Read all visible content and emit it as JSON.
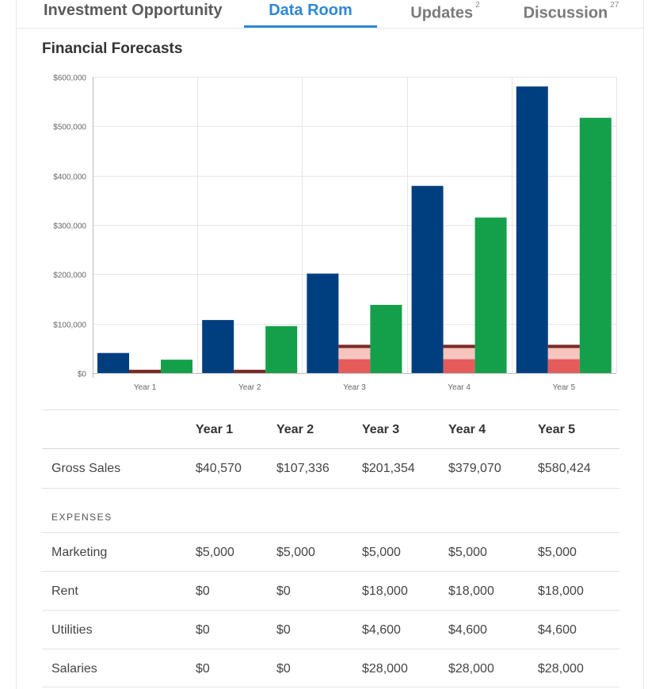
{
  "tabs": [
    {
      "label": "Investment Opportunity",
      "badge": "",
      "active": false
    },
    {
      "label": "Data Room",
      "badge": "",
      "active": true
    },
    {
      "label": "Updates",
      "badge": "2",
      "active": false
    },
    {
      "label": "Discussion",
      "badge": "27",
      "active": false
    }
  ],
  "section_title": "Financial Forecasts",
  "colors": {
    "accent": "#2f87d9",
    "series_blue": "#003f7f",
    "series_green": "#14a04a",
    "series_red": "#e45b5b",
    "series_red_light": "#f6c4bd",
    "series_red_line": "#7a2a25"
  },
  "chart_data": {
    "type": "bar",
    "categories": [
      "Year 1",
      "Year 2",
      "Year 3",
      "Year 4",
      "Year 5"
    ],
    "ylim": [
      0,
      600000
    ],
    "yticks": [
      0,
      100000,
      200000,
      300000,
      400000,
      500000,
      600000
    ],
    "ytick_labels": [
      "$0",
      "$100,000",
      "$200,000",
      "$300,000",
      "$400,000",
      "$500,000",
      "$600,000"
    ],
    "grid": true,
    "series": [
      {
        "values": [
          40570,
          107336,
          201354,
          379070,
          580424
        ]
      },
      {
        "stacked": true,
        "values": [
          5000,
          5000,
          55600,
          55600,
          55600
        ],
        "segments": [
          {
            "values": [
              0,
              0,
              28000,
              28000,
              28000
            ]
          },
          {
            "values": [
              0,
              0,
              4600,
              4600,
              4600
            ]
          },
          {
            "values": [
              0,
              0,
              18000,
              18000,
              18000
            ]
          },
          {
            "values": [
              5000,
              5000,
              5000,
              5000,
              5000
            ]
          }
        ]
      },
      {
        "values": [
          27000,
          95000,
          138000,
          315000,
          517000
        ]
      }
    ]
  },
  "table": {
    "columns": [
      "",
      "Year 1",
      "Year 2",
      "Year 3",
      "Year 4",
      "Year 5"
    ],
    "gross_sales": {
      "label": "Gross Sales",
      "values": [
        "$40,570",
        "$107,336",
        "$201,354",
        "$379,070",
        "$580,424"
      ]
    },
    "expenses_heading": "EXPENSES",
    "rows": [
      {
        "label": "Marketing",
        "values": [
          "$5,000",
          "$5,000",
          "$5,000",
          "$5,000",
          "$5,000"
        ]
      },
      {
        "label": "Rent",
        "values": [
          "$0",
          "$0",
          "$18,000",
          "$18,000",
          "$18,000"
        ]
      },
      {
        "label": "Utilities",
        "values": [
          "$0",
          "$0",
          "$4,600",
          "$4,600",
          "$4,600"
        ]
      },
      {
        "label": "Salaries",
        "values": [
          "$0",
          "$0",
          "$28,000",
          "$28,000",
          "$28,000"
        ]
      }
    ]
  }
}
